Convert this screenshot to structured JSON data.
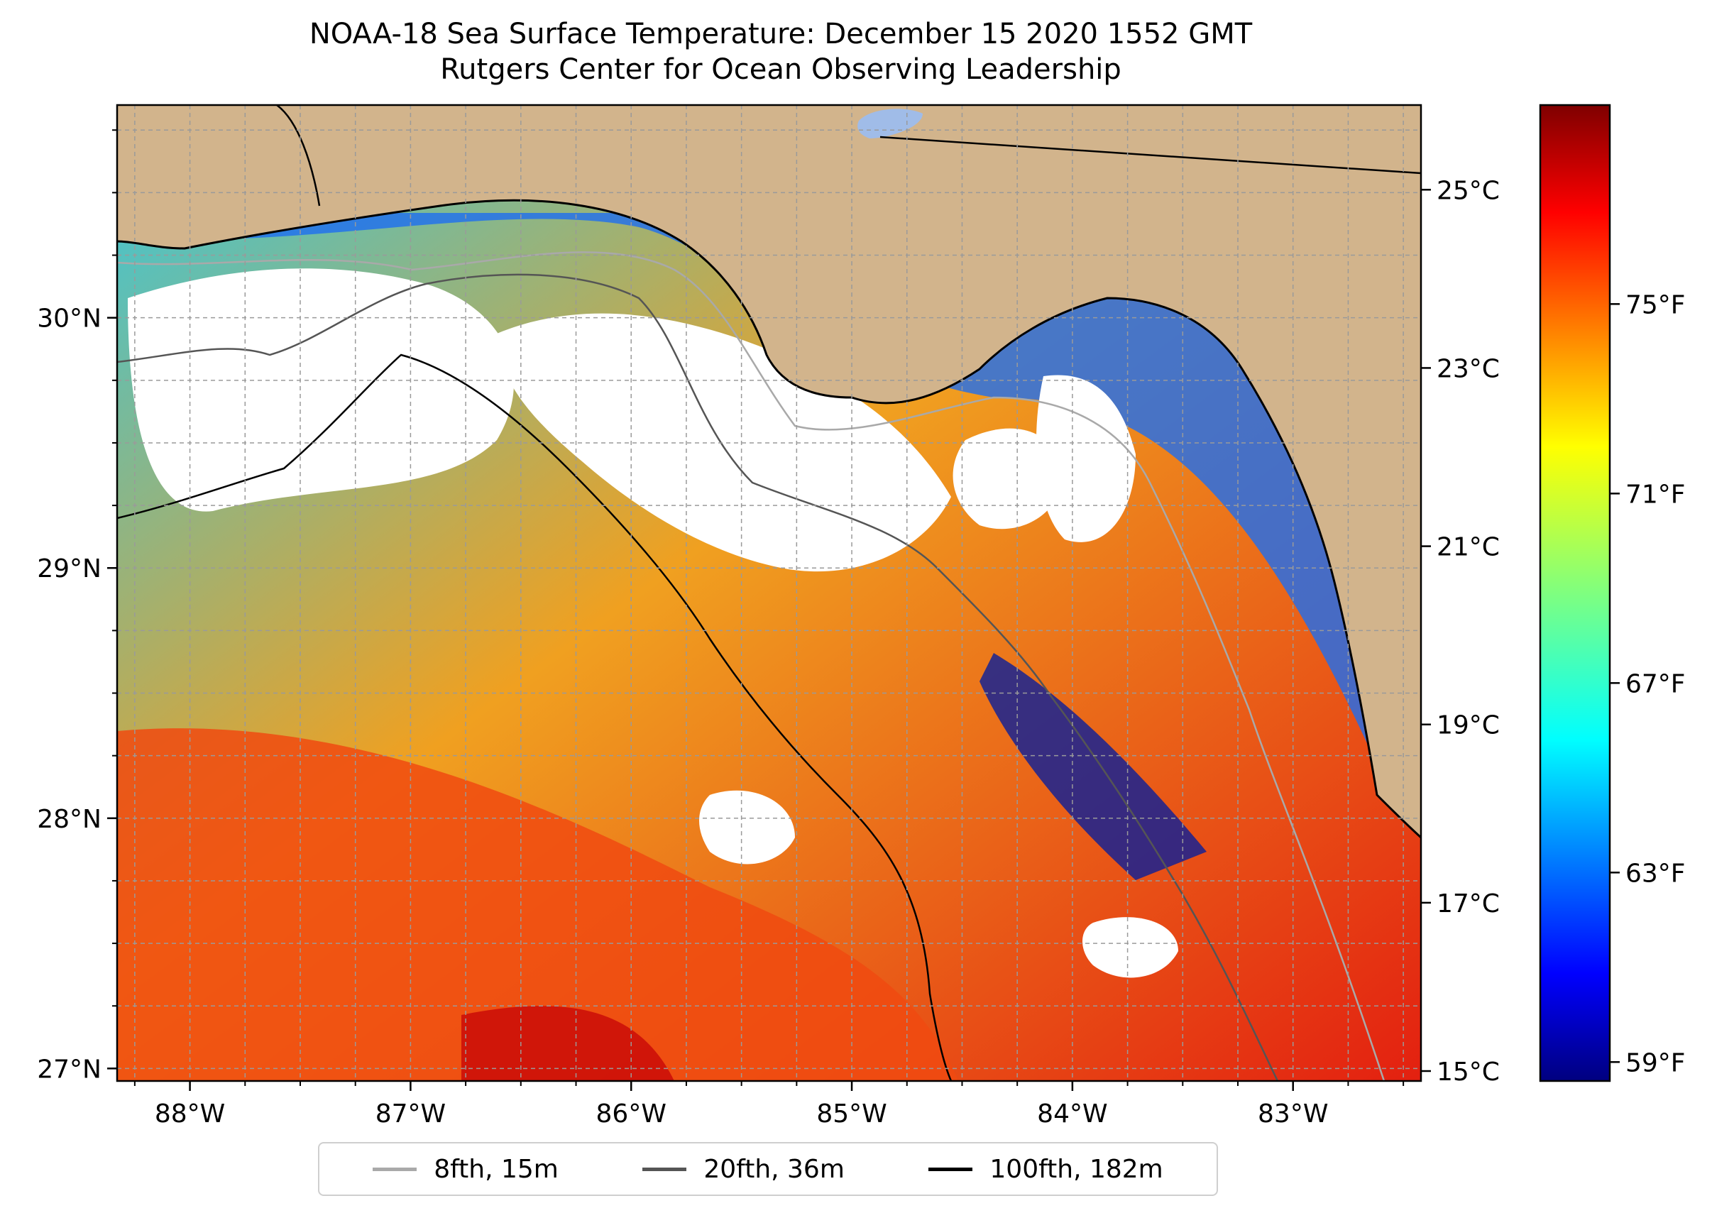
{
  "title": {
    "line1": "NOAA-18 Sea Surface Temperature: December 15 2020 1552 GMT",
    "line2": "Rutgers Center for Ocean Observing Leadership"
  },
  "map": {
    "lon_ticks": [
      "88°W",
      "87°W",
      "86°W",
      "85°W",
      "84°W",
      "83°W"
    ],
    "lat_ticks": [
      "30°N",
      "29°N",
      "28°N",
      "27°N"
    ],
    "lon_range": [
      -88.33,
      -82.42
    ],
    "lat_range": [
      26.95,
      30.85
    ],
    "land_color": "#d2b48c",
    "cloud_color": "#ffffff"
  },
  "colorbar": {
    "colormap": "jet",
    "celsius_ticks": [
      "25°C",
      "23°C",
      "21°C",
      "19°C",
      "17°C",
      "15°C"
    ],
    "fahrenheit_ticks": [
      "75°F",
      "71°F",
      "67°F",
      "63°F",
      "59°F"
    ]
  },
  "legend": {
    "items": [
      {
        "label": "8fth, 15m",
        "color": "#a9a9a9"
      },
      {
        "label": "20fth, 36m",
        "color": "#555555"
      },
      {
        "label": "100fth, 182m",
        "color": "#000000"
      }
    ]
  }
}
